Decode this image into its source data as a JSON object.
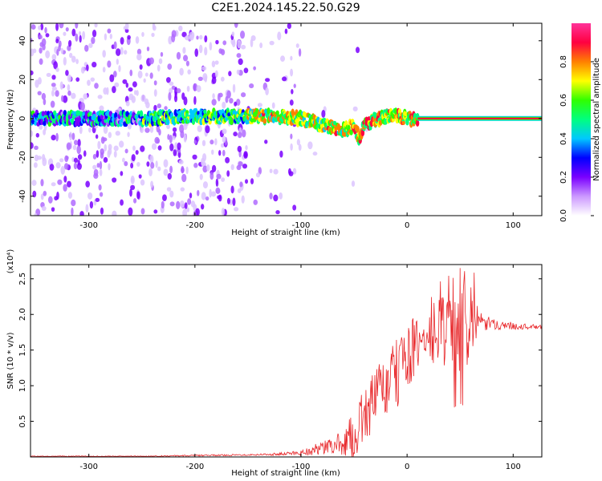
{
  "title": "C2E1.2024.145.22.50.G29",
  "chart_data": [
    {
      "type": "heatmap",
      "xlabel": "Height of straight line (km)",
      "ylabel": "Frequency (Hz)",
      "xlim": [
        -355,
        127
      ],
      "ylim": [
        -50,
        49
      ],
      "xticks": [
        -300,
        -200,
        -100,
        0,
        100
      ],
      "yticks": [
        -40,
        -20,
        0,
        20,
        40
      ],
      "colorbar": {
        "label": "Normalized spectral amplitude",
        "range": [
          0.0,
          1.0
        ],
        "ticks": [
          "0.0",
          "0.2",
          "0.4",
          "0.6",
          "0.8"
        ],
        "tick_values": [
          0.0,
          0.2,
          0.4,
          0.6,
          0.8
        ],
        "colormap": [
          "#ffffff",
          "#cc99ff",
          "#7a00ff",
          "#0000ff",
          "#00c8ff",
          "#00ff80",
          "#30ff00",
          "#ffff00",
          "#ff8000",
          "#ff0040",
          "#ff3399"
        ]
      },
      "ridge": {
        "x": [
          -355,
          -300,
          -250,
          -200,
          -150,
          -120,
          -100,
          -80,
          -70,
          -60,
          -50,
          -45,
          -40,
          -35,
          -30,
          -20,
          -10,
          0,
          10,
          50,
          127
        ],
        "y": [
          0,
          0,
          0,
          1,
          1,
          1,
          0,
          -3,
          -5,
          -6,
          -4,
          -10,
          -3,
          -2,
          -1,
          1,
          1,
          0,
          0,
          0,
          0
        ]
      },
      "grid": false
    },
    {
      "type": "line",
      "xlabel": "Height of straight line (km)",
      "ylabel": "SNR (10 * v/v)",
      "y_multiplier": "(x10⁴)",
      "xlim": [
        -355,
        127
      ],
      "ylim": [
        0.0,
        2.7
      ],
      "xticks": [
        -300,
        -200,
        -100,
        0,
        100
      ],
      "yticks": [
        "0.5",
        "1.0",
        "1.5",
        "2.0",
        "2.5"
      ],
      "ytick_values": [
        0.5,
        1.0,
        1.5,
        2.0,
        2.5
      ],
      "series": [
        {
          "color": "#e8272a",
          "x": [
            -355,
            -300,
            -250,
            -200,
            -150,
            -120,
            -100,
            -90,
            -80,
            -70,
            -60,
            -50,
            -45,
            -40,
            -35,
            -30,
            -25,
            -20,
            -15,
            -10,
            -5,
            0,
            5,
            10,
            15,
            20,
            25,
            30,
            35,
            40,
            45,
            50,
            55,
            60,
            65,
            70,
            80,
            90,
            100,
            110,
            127
          ],
          "y": [
            0.01,
            0.01,
            0.01,
            0.02,
            0.03,
            0.04,
            0.06,
            0.09,
            0.12,
            0.16,
            0.2,
            0.3,
            0.45,
            0.6,
            0.7,
            0.85,
            0.9,
            1.0,
            1.05,
            1.15,
            1.3,
            1.45,
            1.5,
            1.55,
            1.6,
            1.7,
            1.72,
            1.75,
            1.8,
            1.85,
            1.9,
            1.95,
            1.9,
            1.95,
            1.85,
            1.88,
            1.86,
            1.85,
            1.84,
            1.83,
            1.82
          ],
          "spread": [
            0.005,
            0.005,
            0.005,
            0.01,
            0.01,
            0.02,
            0.04,
            0.07,
            0.1,
            0.12,
            0.18,
            0.35,
            0.35,
            0.4,
            0.4,
            0.45,
            0.45,
            0.5,
            0.5,
            0.5,
            0.55,
            0.5,
            0.45,
            0.4,
            0.45,
            0.6,
            0.55,
            0.5,
            0.55,
            0.6,
            0.7,
            0.75,
            0.7,
            0.6,
            0.3,
            0.15,
            0.08,
            0.06,
            0.05,
            0.04,
            0.03
          ]
        }
      ],
      "grid": false
    }
  ]
}
